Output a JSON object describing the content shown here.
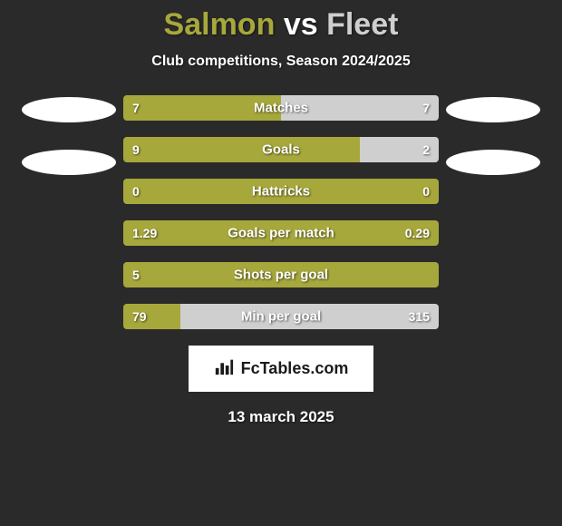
{
  "title": {
    "player1": "Salmon",
    "vs": "vs",
    "player2": "Fleet",
    "player1_color": "#a7a83c",
    "player2_color": "#cfcfcf"
  },
  "subtitle": "Club competitions, Season 2024/2025",
  "colors": {
    "bar_left": "#a7a83c",
    "bar_right": "#cfcfcf",
    "ellipse_left": "#ffffff",
    "ellipse_right": "#ffffff",
    "background": "#2a2a2a",
    "text": "#ffffff",
    "branding_bg": "#ffffff",
    "branding_text": "#1a1a1a"
  },
  "stats": [
    {
      "label": "Matches",
      "left_value": "7",
      "right_value": "7",
      "left_pct": 50,
      "right_pct": 50
    },
    {
      "label": "Goals",
      "left_value": "9",
      "right_value": "2",
      "left_pct": 75,
      "right_pct": 25
    },
    {
      "label": "Hattricks",
      "left_value": "0",
      "right_value": "0",
      "left_pct": 100,
      "right_pct": 0
    },
    {
      "label": "Goals per match",
      "left_value": "1.29",
      "right_value": "0.29",
      "left_pct": 100,
      "right_pct": 0
    },
    {
      "label": "Shots per goal",
      "left_value": "5",
      "right_value": "",
      "left_pct": 100,
      "right_pct": 0
    },
    {
      "label": "Min per goal",
      "left_value": "79",
      "right_value": "315",
      "left_pct": 18,
      "right_pct": 82
    }
  ],
  "branding": "FcTables.com",
  "date": "13 march 2025"
}
